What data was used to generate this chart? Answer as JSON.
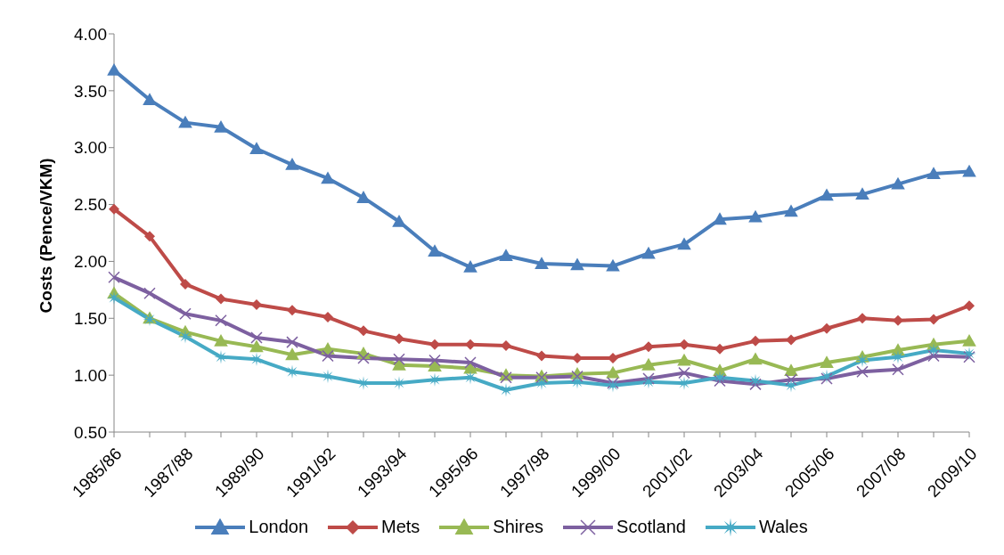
{
  "chart_data": {
    "type": "line",
    "ylabel": "Costs (Pence/VKM)",
    "categories": [
      "1985/86",
      null,
      "1987/88",
      null,
      "1989/90",
      null,
      "1991/92",
      null,
      "1993/94",
      null,
      "1995/96",
      null,
      "1997/98",
      null,
      "1999/00",
      null,
      "2001/02",
      null,
      "2003/04",
      null,
      "2005/06",
      null,
      "2007/08",
      null,
      "2009/10"
    ],
    "series": [
      {
        "name": "London",
        "color": "#4a7ebb",
        "marker": "triangle",
        "values": [
          3.68,
          3.42,
          3.22,
          3.18,
          2.99,
          2.85,
          2.73,
          2.56,
          2.35,
          2.09,
          1.95,
          2.05,
          1.98,
          1.97,
          1.96,
          2.07,
          2.15,
          2.37,
          2.39,
          2.44,
          2.58,
          2.59,
          2.68,
          2.77,
          2.79
        ]
      },
      {
        "name": "Mets",
        "color": "#be4b48",
        "marker": "diamond",
        "values": [
          2.46,
          2.22,
          1.8,
          1.67,
          1.62,
          1.57,
          1.51,
          1.39,
          1.32,
          1.27,
          1.27,
          1.26,
          1.17,
          1.15,
          1.15,
          1.25,
          1.27,
          1.23,
          1.3,
          1.31,
          1.41,
          1.5,
          1.48,
          1.49,
          1.61
        ]
      },
      {
        "name": "Shires",
        "color": "#98b954",
        "marker": "triangle",
        "values": [
          1.72,
          1.5,
          1.38,
          1.3,
          1.25,
          1.18,
          1.23,
          1.19,
          1.09,
          1.08,
          1.06,
          1.0,
          0.99,
          1.01,
          1.02,
          1.09,
          1.13,
          1.04,
          1.14,
          1.04,
          1.11,
          1.16,
          1.22,
          1.27,
          1.3
        ]
      },
      {
        "name": "Scotland",
        "color": "#7d60a0",
        "marker": "cross",
        "values": [
          1.86,
          1.72,
          1.54,
          1.48,
          1.33,
          1.29,
          1.17,
          1.15,
          1.14,
          1.13,
          1.11,
          0.98,
          0.98,
          0.99,
          0.93,
          0.97,
          1.02,
          0.95,
          0.92,
          0.96,
          0.97,
          1.03,
          1.05,
          1.17,
          1.16
        ]
      },
      {
        "name": "Wales",
        "color": "#46aac5",
        "marker": "star",
        "values": [
          1.68,
          1.49,
          1.34,
          1.16,
          1.14,
          1.03,
          0.99,
          0.93,
          0.93,
          0.96,
          0.98,
          0.87,
          0.93,
          0.94,
          0.91,
          0.94,
          0.93,
          0.98,
          0.95,
          0.91,
          0.99,
          1.13,
          1.16,
          1.22,
          1.19
        ]
      }
    ],
    "ylim": [
      0.5,
      4.0
    ],
    "yticks": [
      {
        "value": 0.5,
        "label": "0.50"
      },
      {
        "value": 1.0,
        "label": "1.00"
      },
      {
        "value": 1.5,
        "label": "1.50"
      },
      {
        "value": 2.0,
        "label": "2.00"
      },
      {
        "value": 2.5,
        "label": "2.50"
      },
      {
        "value": 3.0,
        "label": "3.00"
      },
      {
        "value": 3.5,
        "label": "3.50"
      },
      {
        "value": 4.0,
        "label": "4.00"
      }
    ],
    "grid": false,
    "legend": "bottom",
    "line_style": "solid"
  }
}
